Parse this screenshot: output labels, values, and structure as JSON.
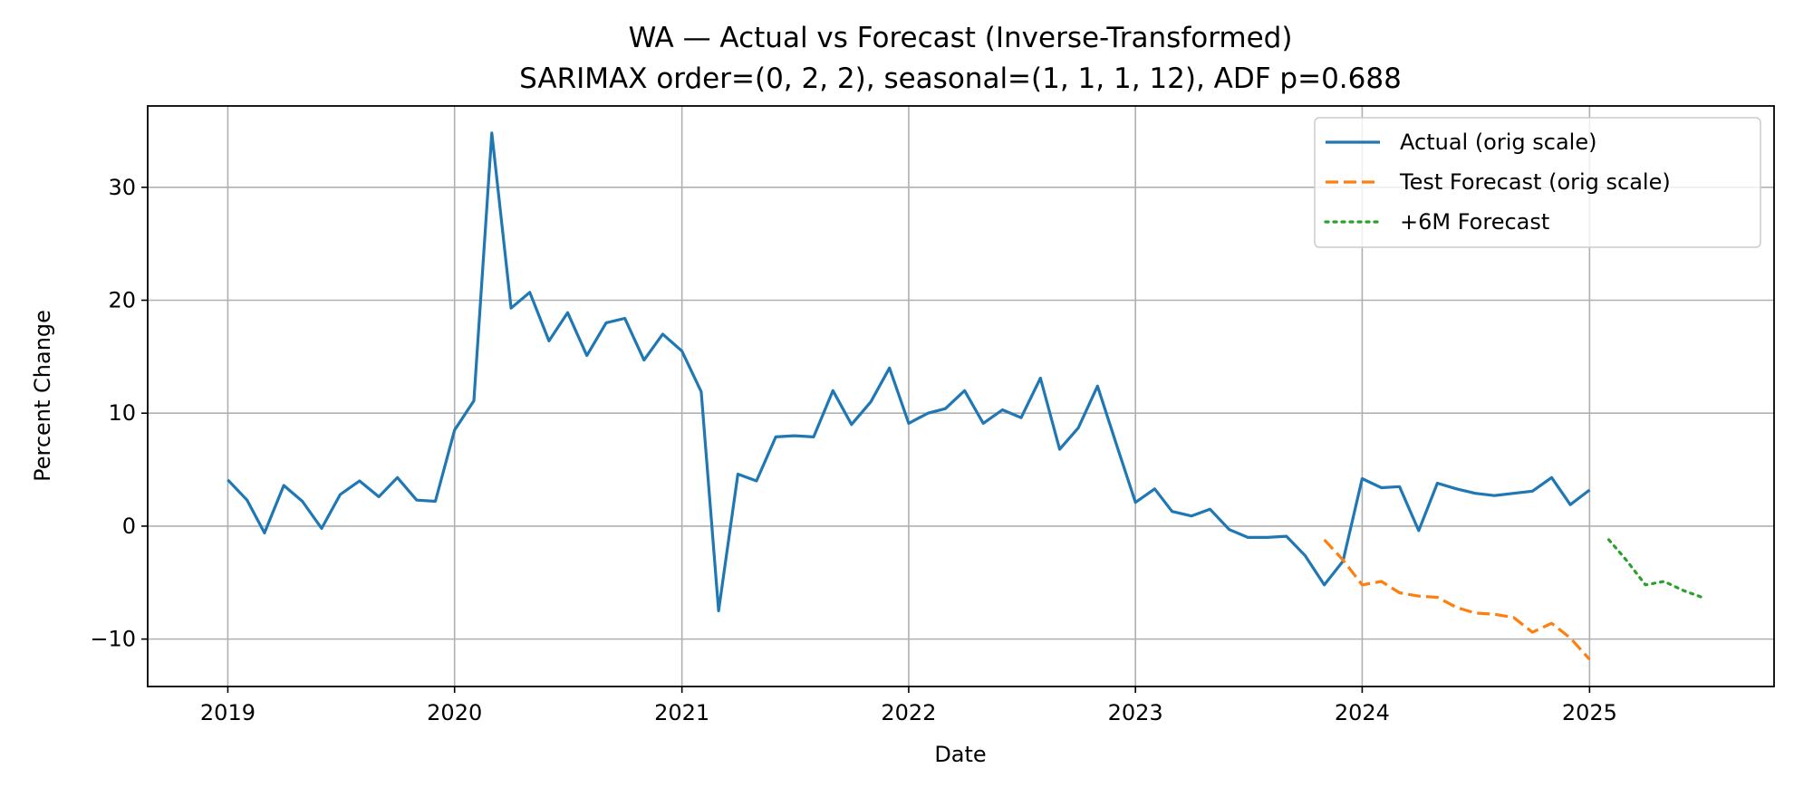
{
  "chart_data": {
    "type": "line",
    "title": "WA — Actual vs Forecast (Inverse-Transformed)",
    "subtitle": "SARIMAX order=(0, 2, 2), seasonal=(1, 1, 1, 12), ADF p=0.688",
    "xlabel": "Date",
    "ylabel": "Percent Change",
    "xlim": [
      "2018-08-25",
      "2025-10-25"
    ],
    "ylim": [
      -14.2,
      37.2
    ],
    "xticks": [
      "2019",
      "2020",
      "2021",
      "2022",
      "2023",
      "2024",
      "2025"
    ],
    "yticks": [
      -10,
      0,
      10,
      20,
      30
    ],
    "yticklabels": [
      "−10",
      "0",
      "10",
      "20",
      "30"
    ],
    "grid": true,
    "legend_position": "top-right",
    "series": [
      {
        "name": "Actual (orig scale)",
        "color": "#1f77b4",
        "style": "solid",
        "x": [
          "2019-01",
          "2019-02",
          "2019-03",
          "2019-04",
          "2019-05",
          "2019-06",
          "2019-07",
          "2019-08",
          "2019-09",
          "2019-10",
          "2019-11",
          "2019-12",
          "2020-01",
          "2020-02",
          "2020-03",
          "2020-04",
          "2020-05",
          "2020-06",
          "2020-07",
          "2020-08",
          "2020-09",
          "2020-10",
          "2020-11",
          "2020-12",
          "2021-01",
          "2021-02",
          "2021-03",
          "2021-04",
          "2021-05",
          "2021-06",
          "2021-07",
          "2021-08",
          "2021-09",
          "2021-10",
          "2021-11",
          "2021-12",
          "2022-01",
          "2022-02",
          "2022-03",
          "2022-04",
          "2022-05",
          "2022-06",
          "2022-07",
          "2022-08",
          "2022-09",
          "2022-10",
          "2022-11",
          "2022-12",
          "2023-01",
          "2023-02",
          "2023-03",
          "2023-04",
          "2023-05",
          "2023-06",
          "2023-07",
          "2023-08",
          "2023-09",
          "2023-10",
          "2023-11",
          "2023-12",
          "2024-01",
          "2024-02",
          "2024-03",
          "2024-04",
          "2024-05",
          "2024-06",
          "2024-07",
          "2024-08",
          "2024-09",
          "2024-10",
          "2024-11",
          "2024-12",
          "2025-01"
        ],
        "values": [
          4.1,
          2.3,
          -0.6,
          3.6,
          2.2,
          -0.2,
          2.8,
          4.0,
          2.6,
          4.3,
          2.3,
          2.2,
          8.5,
          11.1,
          34.8,
          19.3,
          20.7,
          16.4,
          18.9,
          15.1,
          18.0,
          18.4,
          14.7,
          17.0,
          15.5,
          11.9,
          -7.5,
          4.6,
          4.0,
          7.9,
          8.0,
          7.9,
          12.0,
          9.0,
          11.0,
          14.0,
          9.1,
          10.0,
          10.4,
          12.0,
          9.1,
          10.3,
          9.6,
          13.1,
          6.8,
          8.7,
          12.4,
          7.3,
          2.1,
          3.3,
          1.3,
          0.9,
          1.5,
          -0.3,
          -1.0,
          -1.0,
          -0.9,
          -2.6,
          -5.2,
          -3.1,
          4.2,
          3.4,
          3.5,
          -0.4,
          3.8,
          3.3,
          2.9,
          2.7,
          2.9,
          3.1,
          4.3,
          1.9,
          3.2
        ]
      },
      {
        "name": "Test Forecast (orig scale)",
        "color": "#ff7f0e",
        "style": "dashed",
        "x": [
          "2023-11",
          "2023-12",
          "2024-01",
          "2024-02",
          "2024-03",
          "2024-04",
          "2024-05",
          "2024-06",
          "2024-07",
          "2024-08",
          "2024-09",
          "2024-10",
          "2024-11",
          "2024-12",
          "2025-01"
        ],
        "values": [
          -1.2,
          -3.0,
          -5.2,
          -4.9,
          -5.9,
          -6.2,
          -6.3,
          -7.2,
          -7.7,
          -7.8,
          -8.1,
          -9.4,
          -8.6,
          -9.9,
          -11.8
        ]
      },
      {
        "name": "+6M Forecast",
        "color": "#2ca02c",
        "style": "dotted",
        "x": [
          "2025-02",
          "2025-03",
          "2025-04",
          "2025-05",
          "2025-06",
          "2025-07"
        ],
        "values": [
          -1.2,
          -3.0,
          -5.2,
          -4.9,
          -5.7,
          -6.3
        ]
      }
    ]
  }
}
